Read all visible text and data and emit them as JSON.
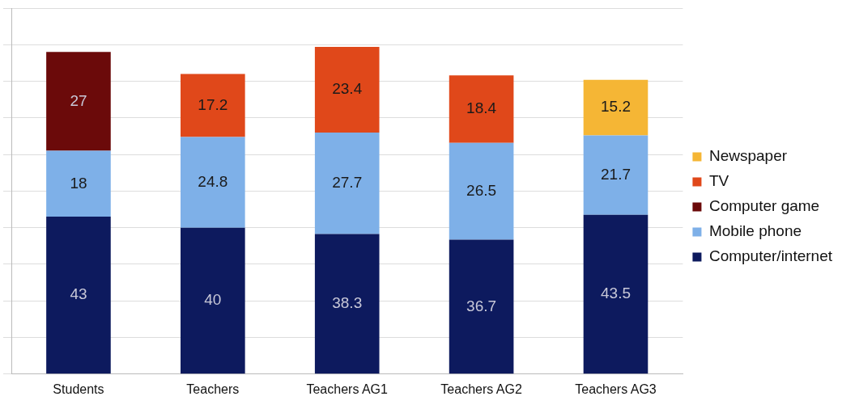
{
  "chart_data": {
    "type": "bar",
    "stacked": true,
    "categories": [
      "Students",
      "Teachers",
      "Teachers AG1",
      "Teachers AG2",
      "Teachers AG3"
    ],
    "series": [
      {
        "name": "Computer/internet",
        "color": "#0d1a5e",
        "values": [
          43,
          40,
          38.3,
          36.7,
          43.5
        ]
      },
      {
        "name": "Mobile phone",
        "color": "#7eb0e8",
        "values": [
          18,
          24.8,
          27.7,
          26.5,
          21.7
        ]
      },
      {
        "name": "Computer game",
        "color": "#6b0a0a",
        "values": [
          27,
          null,
          null,
          null,
          null
        ]
      },
      {
        "name": "TV",
        "color": "#e0481a",
        "values": [
          null,
          17.2,
          23.4,
          18.4,
          null
        ]
      },
      {
        "name": "Newspaper",
        "color": "#f5b635",
        "values": [
          null,
          null,
          null,
          null,
          15.2
        ]
      }
    ],
    "ylim": [
      0,
      100
    ],
    "yticks": [
      {
        "value": 0,
        "label": null
      },
      {
        "value": 10,
        "label": null
      },
      {
        "value": 20,
        "label": null
      },
      {
        "value": 30,
        "label": null
      },
      {
        "value": 40,
        "label": null
      },
      {
        "value": 50,
        "label": null
      },
      {
        "value": 60,
        "label": null
      },
      {
        "value": 70,
        "label": null
      },
      {
        "value": 80,
        "label": null
      },
      {
        "value": 90,
        "label": null
      },
      {
        "value": 100,
        "label": null
      }
    ],
    "tick_labels": "x",
    "grid": "y",
    "legend": "right",
    "data_labels": true
  }
}
